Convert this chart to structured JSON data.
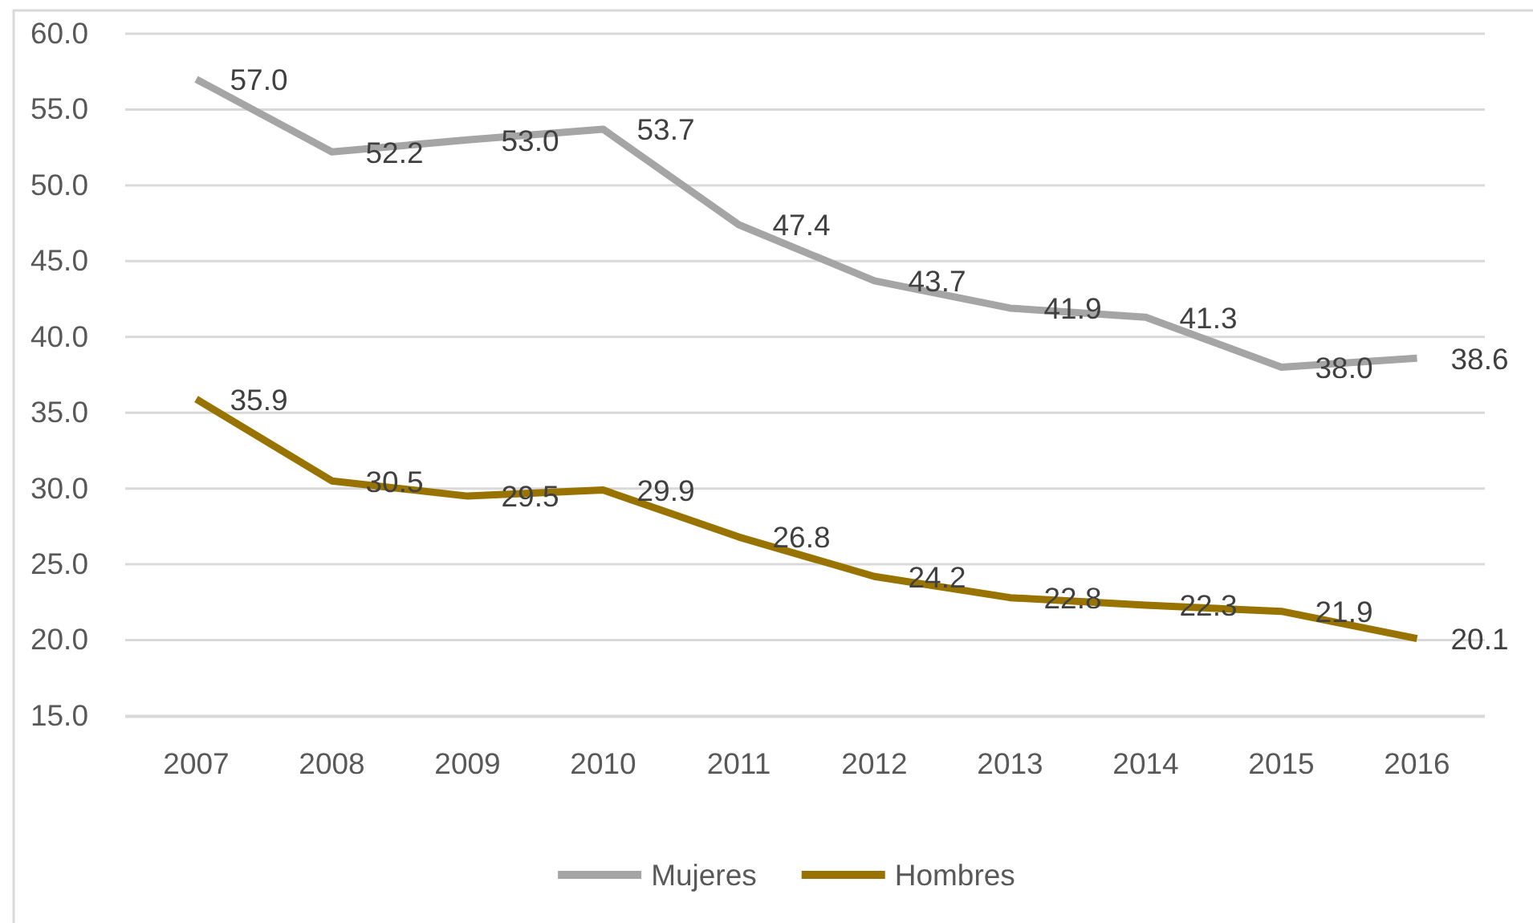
{
  "chart_data": {
    "type": "line",
    "categories": [
      "2007",
      "2008",
      "2009",
      "2010",
      "2011",
      "2012",
      "2013",
      "2014",
      "2015",
      "2016"
    ],
    "series": [
      {
        "name": "Mujeres",
        "color": "#a5a5a5",
        "values": [
          57.0,
          52.2,
          53.0,
          53.7,
          47.4,
          43.7,
          41.9,
          41.3,
          38.0,
          38.6
        ],
        "value_labels": [
          "57.0",
          "52.2",
          "53.0",
          "53.7",
          "47.4",
          "43.7",
          "41.9",
          "41.3",
          "38.0",
          "38.6"
        ]
      },
      {
        "name": "Hombres",
        "color": "#997300",
        "values": [
          35.9,
          30.5,
          29.5,
          29.9,
          26.8,
          24.2,
          22.8,
          22.3,
          21.9,
          20.1
        ],
        "value_labels": [
          "35.9",
          "30.5",
          "29.5",
          "29.9",
          "26.8",
          "24.2",
          "22.8",
          "22.3",
          "21.9",
          "20.1"
        ]
      }
    ],
    "ylim": [
      15,
      60
    ],
    "yticks": [
      {
        "value": 15,
        "label": "15.0"
      },
      {
        "value": 20,
        "label": "20.0"
      },
      {
        "value": 25,
        "label": "25.0"
      },
      {
        "value": 30,
        "label": "30.0"
      },
      {
        "value": 35,
        "label": "35.0"
      },
      {
        "value": 40,
        "label": "40.0"
      },
      {
        "value": 45,
        "label": "45.0"
      },
      {
        "value": 50,
        "label": "50.0"
      },
      {
        "value": 55,
        "label": "55.0"
      },
      {
        "value": 60,
        "label": "60.0"
      }
    ],
    "grid": "y",
    "legend": "bottom"
  }
}
